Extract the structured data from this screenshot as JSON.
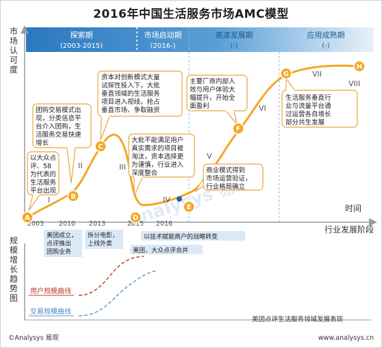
{
  "title": "2016年中国生活服务市场AMC模型",
  "y_axis_label": [
    "市",
    "场",
    "认",
    "可",
    "度"
  ],
  "x_axis_label": "行业发展阶段",
  "time_label": "时间",
  "phases": [
    {
      "name": "探索期",
      "range": "(2003-2015)"
    },
    {
      "name": "市场启动期",
      "range": "(2016-)"
    },
    {
      "name": "高速发展期",
      "range": "(-)"
    },
    {
      "name": "应用成熟期",
      "range": "(-)"
    }
  ],
  "stages": [
    "I",
    "II",
    "III",
    "IV",
    "V",
    "VI",
    "VII",
    "VIII"
  ],
  "years": [
    "2003",
    "2010",
    "2013",
    "2015",
    "2016"
  ],
  "points": [
    "A",
    "B",
    "C",
    "D",
    "E",
    "F",
    "G",
    "H"
  ],
  "callouts": [
    {
      "id": "A",
      "lines": [
        "以大众点",
        "评、58",
        "为代表的",
        "生活服务",
        "平台出现"
      ]
    },
    {
      "id": "B",
      "lines": [
        "团购交易模式出",
        "现，分类信息平",
        "台介入团购，生",
        "活服务交易快速",
        "增长"
      ]
    },
    {
      "id": "C",
      "lines": [
        "资本对创新模式大量",
        "试探性投入下，大批",
        "垂直领域的生活服务",
        "项目进入视线，抢占",
        "垂直市场、争取融资"
      ]
    },
    {
      "id": "D",
      "lines": [
        "大批不能满足用户",
        "真实需求的项目被",
        "淘汰，资本选择更",
        "为谨慎，行业进入",
        "深度整合"
      ]
    },
    {
      "id": "E",
      "lines": [
        "商业模式得到",
        "市场运营验证，",
        "行业格局确立"
      ]
    },
    {
      "id": "F",
      "lines": [
        "主要厂商内部人",
        "效与用户体验大",
        "幅提升，开始全",
        "面盈利"
      ]
    },
    {
      "id": "G",
      "lines": [
        "生活服务垂直行",
        "业与流量平台通",
        "过运营各自增长",
        "部分共生发展"
      ]
    }
  ],
  "events": {
    "e1": [
      "美团成立，",
      "点评推出",
      "团购业务"
    ],
    "e2": [
      "拆分电影，",
      "上线外卖"
    ],
    "e3": "以技术赋能商户的战略转变",
    "e4": "美团、大众点评合并"
  },
  "scale_y_label": [
    "规",
    "模",
    "增",
    "长",
    "趋",
    "势",
    "图"
  ],
  "user_curve_label": "用户规模曲线",
  "transaction_curve_label": "交易规模曲线",
  "footer_center": "美团点评生活服务领域发展表现",
  "footer_left": "©Analysys 易观",
  "footer_right": "www.analysys.cn",
  "watermark": "Analysys 易观",
  "colors": {
    "curve": "#f5a623",
    "phase_blue": "#2f7fc1",
    "callout_border": "#e8a33c",
    "user_curve": "#c0392b",
    "transaction_curve": "#5b9bd5",
    "point_fill": "#f5a623"
  },
  "chart_data": {
    "type": "line",
    "title": "2016年中国生活服务市场AMC模型",
    "xlabel": "行业发展阶段",
    "ylabel": "市场认可度",
    "categories": [
      "A",
      "B",
      "C",
      "D",
      "E",
      "F",
      "G",
      "H"
    ],
    "series": [
      {
        "values": [
          0.0,
          0.12,
          0.4,
          0.0,
          0.06,
          0.5,
          0.81,
          0.85
        ]
      }
    ]
  }
}
